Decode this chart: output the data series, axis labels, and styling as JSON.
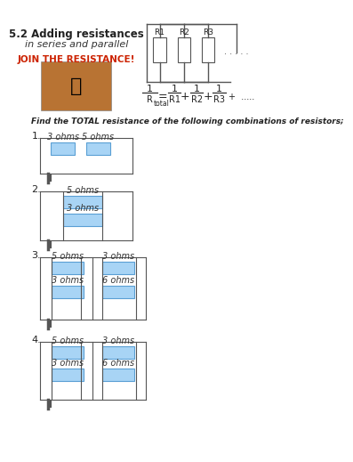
{
  "title1": "5.2 Adding resistances",
  "title2": "in series and parallel",
  "find_text": "Find the TOTAL resistance of the following combinations of resistors;",
  "bg_color": "#ffffff",
  "resistor_fill": "#a8d4f5",
  "resistor_edge": "#5a9fd4",
  "line_color": "#555555",
  "q1": {
    "number": "1.",
    "type": "series",
    "resistors": [
      "3 ohms",
      "5 ohms"
    ]
  },
  "q2": {
    "number": "2.",
    "type": "parallel",
    "resistors": [
      "5 ohms",
      "3 ohms"
    ]
  },
  "q3": {
    "number": "3.",
    "type": "series_parallel",
    "top_resistors": [
      "5 ohms",
      "3 ohms"
    ],
    "bot_resistors": [
      "3 ohms",
      "6 ohms"
    ]
  },
  "q4": {
    "number": "4.",
    "type": "series_parallel",
    "top_resistors": [
      "5 ohms",
      "3 ohms"
    ],
    "bot_resistors": [
      "3 ohms",
      "6 ohms"
    ]
  }
}
